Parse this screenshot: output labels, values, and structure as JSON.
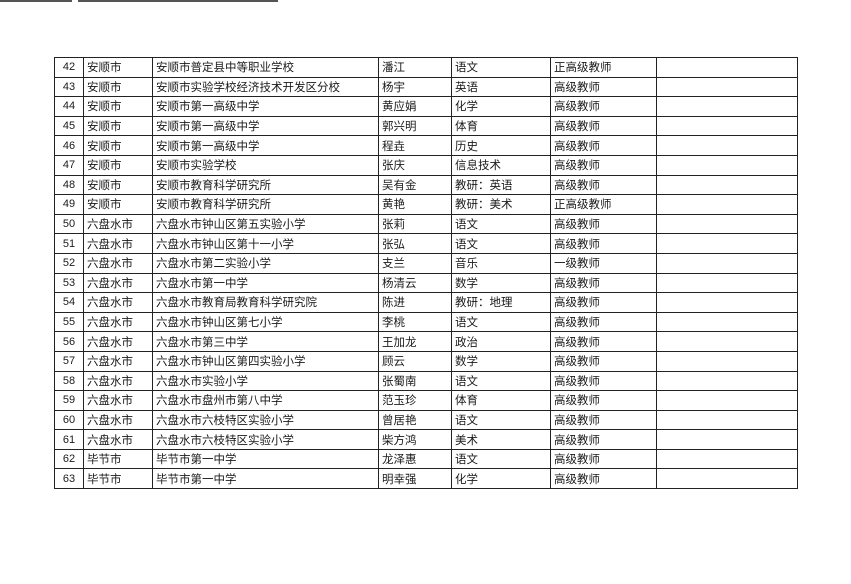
{
  "rows": [
    {
      "no": "42",
      "city": "安顺市",
      "school": "安顺市普定县中等职业学校",
      "name": "潘江",
      "subject": "语文",
      "title": "正高级教师",
      "note": ""
    },
    {
      "no": "43",
      "city": "安顺市",
      "school": "安顺市实验学校经济技术开发区分校",
      "name": "杨宇",
      "subject": "英语",
      "title": "高级教师",
      "note": ""
    },
    {
      "no": "44",
      "city": "安顺市",
      "school": "安顺市第一高级中学",
      "name": "黄应娟",
      "subject": "化学",
      "title": "高级教师",
      "note": ""
    },
    {
      "no": "45",
      "city": "安顺市",
      "school": "安顺市第一高级中学",
      "name": "郭兴明",
      "subject": "体育",
      "title": "高级教师",
      "note": ""
    },
    {
      "no": "46",
      "city": "安顺市",
      "school": "安顺市第一高级中学",
      "name": "程垚",
      "subject": "历史",
      "title": "高级教师",
      "note": ""
    },
    {
      "no": "47",
      "city": "安顺市",
      "school": "安顺市实验学校",
      "name": "张庆",
      "subject": "信息技术",
      "title": "高级教师",
      "note": ""
    },
    {
      "no": "48",
      "city": "安顺市",
      "school": "安顺市教育科学研究所",
      "name": "吴有金",
      "subject": "教研：英语",
      "title": "高级教师",
      "note": ""
    },
    {
      "no": "49",
      "city": "安顺市",
      "school": "安顺市教育科学研究所",
      "name": "黄艳",
      "subject": "教研：美术",
      "title": "正高级教师",
      "note": ""
    },
    {
      "no": "50",
      "city": "六盘水市",
      "school": "六盘水市钟山区第五实验小学",
      "name": "张莉",
      "subject": "语文",
      "title": "高级教师",
      "note": ""
    },
    {
      "no": "51",
      "city": "六盘水市",
      "school": "六盘水市钟山区第十一小学",
      "name": "张弘",
      "subject": "语文",
      "title": "高级教师",
      "note": ""
    },
    {
      "no": "52",
      "city": "六盘水市",
      "school": "六盘水市第二实验小学",
      "name": "支兰",
      "subject": "音乐",
      "title": "一级教师",
      "note": ""
    },
    {
      "no": "53",
      "city": "六盘水市",
      "school": "六盘水市第一中学",
      "name": "杨清云",
      "subject": "数学",
      "title": "高级教师",
      "note": ""
    },
    {
      "no": "54",
      "city": "六盘水市",
      "school": "六盘水市教育局教育科学研究院",
      "name": "陈进",
      "subject": "教研：地理",
      "title": "高级教师",
      "note": ""
    },
    {
      "no": "55",
      "city": "六盘水市",
      "school": "六盘水市钟山区第七小学",
      "name": "李桃",
      "subject": "语文",
      "title": "高级教师",
      "note": ""
    },
    {
      "no": "56",
      "city": "六盘水市",
      "school": "六盘水市第三中学",
      "name": "王加龙",
      "subject": "政治",
      "title": "高级教师",
      "note": ""
    },
    {
      "no": "57",
      "city": "六盘水市",
      "school": "六盘水市钟山区第四实验小学",
      "name": "顾云",
      "subject": "数学",
      "title": "高级教师",
      "note": ""
    },
    {
      "no": "58",
      "city": "六盘水市",
      "school": "六盘水市实验小学",
      "name": "张蜀南",
      "subject": "语文",
      "title": "高级教师",
      "note": ""
    },
    {
      "no": "59",
      "city": "六盘水市",
      "school": "六盘水市盘州市第八中学",
      "name": "范玉珍",
      "subject": "体育",
      "title": "高级教师",
      "note": ""
    },
    {
      "no": "60",
      "city": "六盘水市",
      "school": "六盘水市六枝特区实验小学",
      "name": "曾居艳",
      "subject": "语文",
      "title": "高级教师",
      "note": ""
    },
    {
      "no": "61",
      "city": "六盘水市",
      "school": "六盘水市六枝特区实验小学",
      "name": "柴方鸿",
      "subject": "美术",
      "title": "高级教师",
      "note": ""
    },
    {
      "no": "62",
      "city": "毕节市",
      "school": "毕节市第一中学",
      "name": "龙泽惠",
      "subject": "语文",
      "title": "高级教师",
      "note": ""
    },
    {
      "no": "63",
      "city": "毕节市",
      "school": "毕节市第一中学",
      "name": "明幸强",
      "subject": "化学",
      "title": "高级教师",
      "note": ""
    }
  ]
}
